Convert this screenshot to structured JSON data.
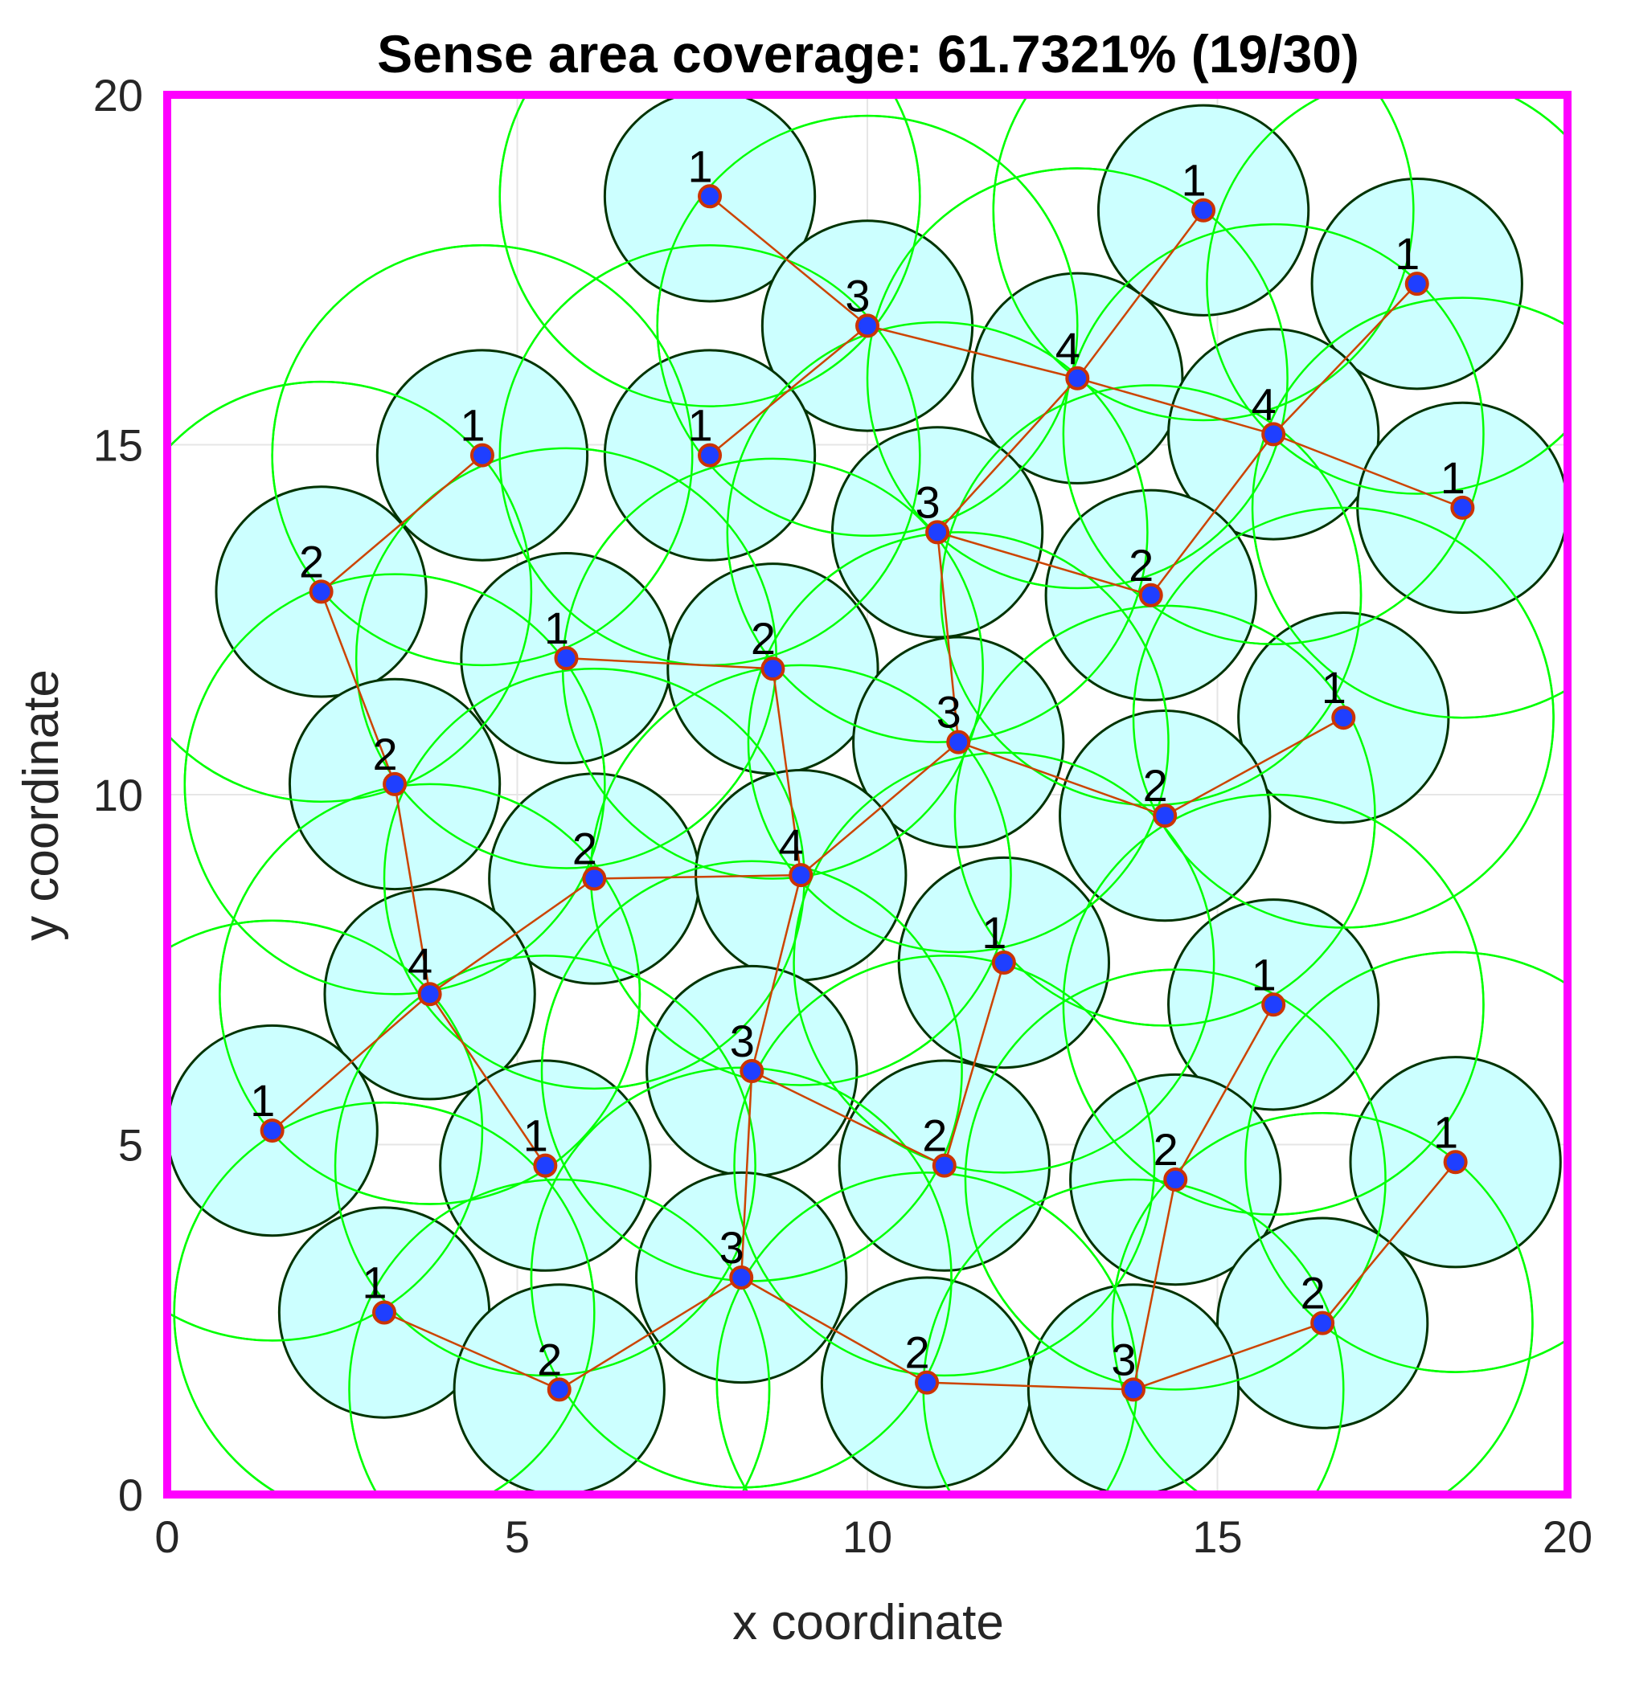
{
  "colors": {
    "border": "#ff00ff",
    "sensing_fill": "#ccffff",
    "sensing_edge": "#003300",
    "comm_circle": "#00ff00",
    "link": "#cc4400",
    "node_fill": "#1f3fff",
    "node_edge": "#cc3300",
    "grid": "#e6e6e6"
  },
  "chart_data": {
    "type": "scatter",
    "title": "Sense area coverage: 61.7321% (19/30)",
    "xlabel": "x coordinate",
    "ylabel": "y coordinate",
    "xlim": [
      0,
      20
    ],
    "ylim": [
      0,
      20
    ],
    "xticks": [
      "0",
      "5",
      "10",
      "15",
      "20"
    ],
    "yticks": [
      "0",
      "5",
      "10",
      "15",
      "20"
    ],
    "grid": true,
    "sensing_radius": 1.5,
    "comm_radius": 3.0,
    "nodes": [
      {
        "x": 7.75,
        "y": 18.55,
        "hop": "1"
      },
      {
        "x": 14.8,
        "y": 18.35,
        "hop": "1"
      },
      {
        "x": 17.85,
        "y": 17.3,
        "hop": "1"
      },
      {
        "x": 10.0,
        "y": 16.7,
        "hop": "3"
      },
      {
        "x": 13.0,
        "y": 15.95,
        "hop": "4"
      },
      {
        "x": 15.8,
        "y": 15.15,
        "hop": "4"
      },
      {
        "x": 4.5,
        "y": 14.85,
        "hop": "1"
      },
      {
        "x": 7.75,
        "y": 14.85,
        "hop": "1"
      },
      {
        "x": 18.5,
        "y": 14.1,
        "hop": "1"
      },
      {
        "x": 11.0,
        "y": 13.75,
        "hop": "3"
      },
      {
        "x": 2.2,
        "y": 12.9,
        "hop": "2"
      },
      {
        "x": 14.05,
        "y": 12.85,
        "hop": "2"
      },
      {
        "x": 5.7,
        "y": 11.95,
        "hop": "1"
      },
      {
        "x": 8.65,
        "y": 11.8,
        "hop": "2"
      },
      {
        "x": 16.8,
        "y": 11.1,
        "hop": "1"
      },
      {
        "x": 11.3,
        "y": 10.75,
        "hop": "3"
      },
      {
        "x": 3.25,
        "y": 10.15,
        "hop": "2"
      },
      {
        "x": 14.25,
        "y": 9.7,
        "hop": "2"
      },
      {
        "x": 6.1,
        "y": 8.8,
        "hop": "2"
      },
      {
        "x": 9.05,
        "y": 8.85,
        "hop": "4"
      },
      {
        "x": 11.95,
        "y": 7.6,
        "hop": "1"
      },
      {
        "x": 3.75,
        "y": 7.15,
        "hop": "4"
      },
      {
        "x": 15.8,
        "y": 7.0,
        "hop": "1"
      },
      {
        "x": 8.35,
        "y": 6.05,
        "hop": "3"
      },
      {
        "x": 1.5,
        "y": 5.2,
        "hop": "1"
      },
      {
        "x": 5.4,
        "y": 4.7,
        "hop": "1"
      },
      {
        "x": 11.1,
        "y": 4.7,
        "hop": "2"
      },
      {
        "x": 14.4,
        "y": 4.5,
        "hop": "2"
      },
      {
        "x": 18.4,
        "y": 4.75,
        "hop": "1"
      },
      {
        "x": 8.2,
        "y": 3.1,
        "hop": "3"
      },
      {
        "x": 3.1,
        "y": 2.6,
        "hop": "1"
      },
      {
        "x": 16.5,
        "y": 2.45,
        "hop": "2"
      },
      {
        "x": 5.6,
        "y": 1.5,
        "hop": "2"
      },
      {
        "x": 10.85,
        "y": 1.6,
        "hop": "2"
      },
      {
        "x": 13.8,
        "y": 1.5,
        "hop": "3"
      }
    ],
    "links": [
      [
        0,
        3
      ],
      [
        3,
        4
      ],
      [
        4,
        1
      ],
      [
        4,
        5
      ],
      [
        5,
        2
      ],
      [
        5,
        8
      ],
      [
        3,
        7
      ],
      [
        4,
        9
      ],
      [
        9,
        11
      ],
      [
        11,
        5
      ],
      [
        9,
        15
      ],
      [
        15,
        19
      ],
      [
        15,
        17
      ],
      [
        17,
        14
      ],
      [
        6,
        10
      ],
      [
        10,
        16
      ],
      [
        16,
        21
      ],
      [
        12,
        13
      ],
      [
        13,
        19
      ],
      [
        18,
        19
      ],
      [
        21,
        18
      ],
      [
        21,
        24
      ],
      [
        21,
        25
      ],
      [
        19,
        23
      ],
      [
        23,
        26
      ],
      [
        20,
        26
      ],
      [
        23,
        29
      ],
      [
        29,
        32
      ],
      [
        32,
        30
      ],
      [
        29,
        33
      ],
      [
        33,
        34
      ],
      [
        34,
        31
      ],
      [
        31,
        28
      ],
      [
        34,
        27
      ],
      [
        27,
        22
      ]
    ]
  }
}
